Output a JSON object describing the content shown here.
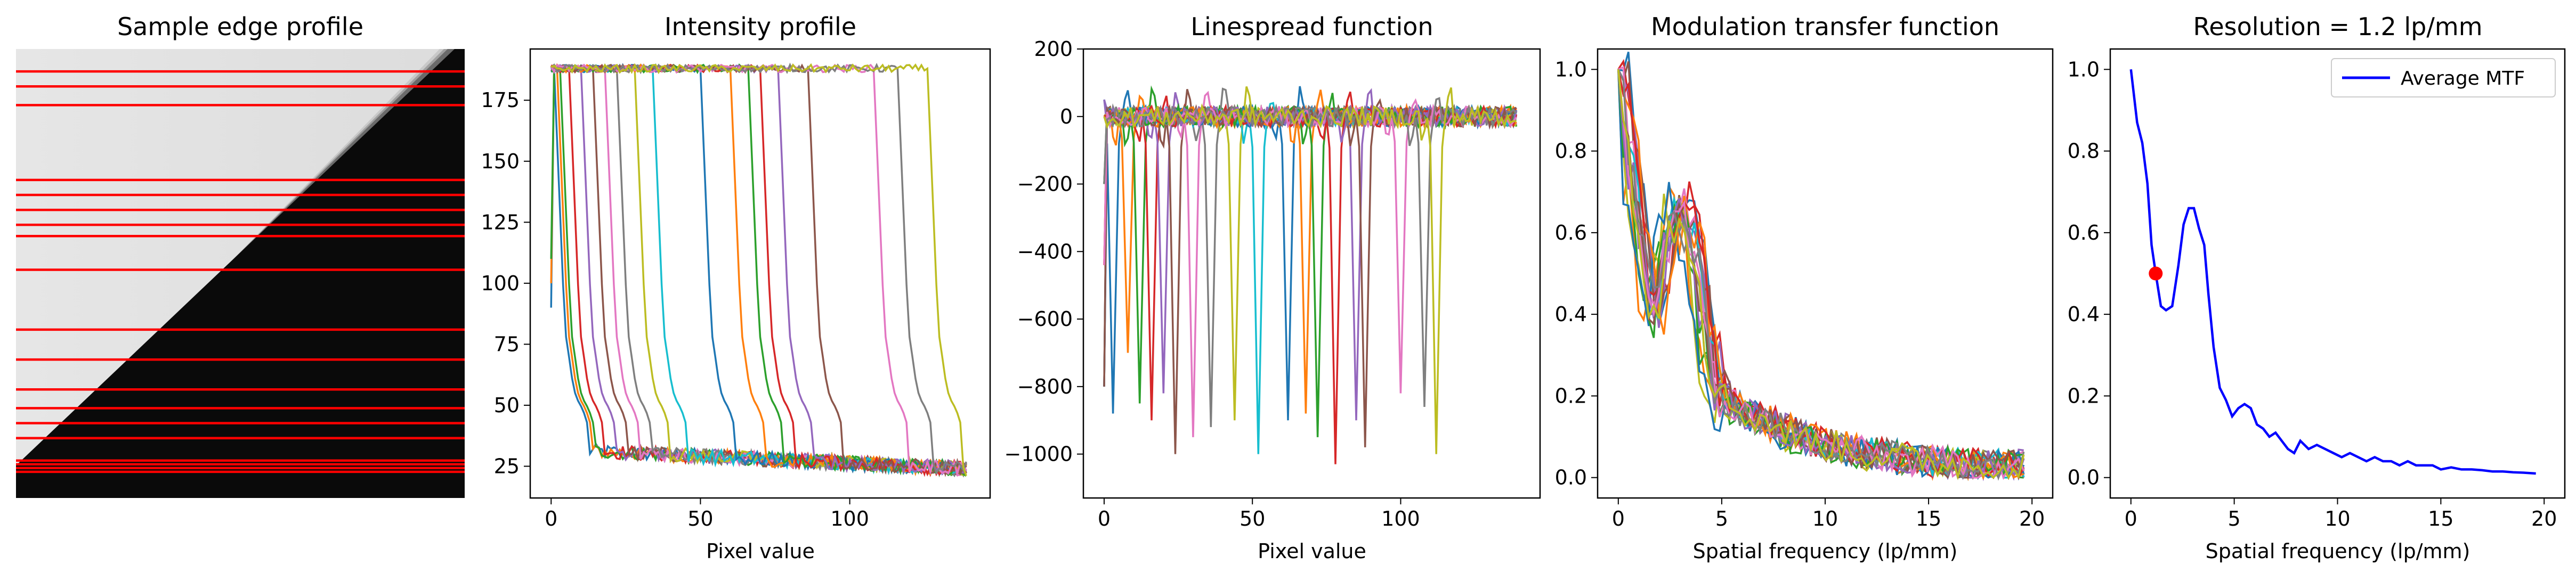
{
  "chart_data": [
    {
      "type": "image",
      "title": "Sample edge profile",
      "image_description": "Grayscale edge image: light region upper-left, dark region lower-right, diagonal blurred edge",
      "sample_rows": [
        6,
        10,
        15,
        35,
        39,
        43,
        47,
        50,
        59,
        75,
        83,
        91,
        96,
        100,
        104,
        110,
        111,
        112,
        113
      ],
      "image_rows": 120,
      "line_color": "#ff0000"
    },
    {
      "type": "line",
      "title": "Intensity profile",
      "xlabel": "Pixel value",
      "ylabel": "",
      "xlim": [
        -7,
        147
      ],
      "ylim": [
        12,
        196
      ],
      "xticks": [
        0,
        50,
        100
      ],
      "yticks": [
        25,
        50,
        75,
        100,
        125,
        150,
        175
      ],
      "num_series": 19,
      "high_value": 188,
      "low_value": 22,
      "edge_positions": [
        3,
        4,
        5,
        8,
        12,
        16,
        20,
        24,
        30,
        36,
        52,
        62,
        68,
        72,
        78,
        88,
        110,
        118,
        128,
        132
      ],
      "num_points": 140
    },
    {
      "type": "line",
      "title": "Linespread function",
      "xlabel": "Pixel value",
      "ylabel": "",
      "xlim": [
        -7,
        147
      ],
      "ylim": [
        -1130,
        200
      ],
      "xticks": [
        0,
        50,
        100
      ],
      "yticks": [
        200,
        0,
        -200,
        -400,
        -600,
        -800,
        -1000
      ],
      "num_series": 19,
      "dip_positions": [
        3,
        8,
        12,
        16,
        20,
        24,
        30,
        36,
        44,
        52,
        62,
        68,
        72,
        78,
        85,
        88,
        100,
        108,
        112,
        118,
        124,
        130
      ],
      "dip_depths": [
        -880,
        -700,
        -850,
        -900,
        -820,
        -1000,
        -950,
        -920,
        -900,
        -1000,
        -900,
        -880,
        -950,
        -1030,
        -900,
        -980,
        -820,
        -860,
        -1000,
        -1060,
        -880,
        -900
      ]
    },
    {
      "type": "line",
      "title": "Modulation transfer function",
      "xlabel": "Spatial frequency (lp/mm)",
      "ylabel": "",
      "xlim": [
        -1,
        21
      ],
      "ylim": [
        -0.05,
        1.05
      ],
      "xticks": [
        0,
        5,
        10,
        15,
        20
      ],
      "yticks": [
        0.0,
        0.2,
        0.4,
        0.6,
        0.8,
        1.0
      ],
      "num_series": 19,
      "x_max": 19.6,
      "base_curve": [
        [
          0,
          1.0
        ],
        [
          0.5,
          0.78
        ],
        [
          1.0,
          0.64
        ],
        [
          1.3,
          0.48
        ],
        [
          1.8,
          0.42
        ],
        [
          2.3,
          0.58
        ],
        [
          2.8,
          0.66
        ],
        [
          3.3,
          0.62
        ],
        [
          3.8,
          0.52
        ],
        [
          4.3,
          0.3
        ],
        [
          5.0,
          0.2
        ],
        [
          5.8,
          0.16
        ],
        [
          6.5,
          0.15
        ],
        [
          7.5,
          0.13
        ],
        [
          8.5,
          0.1
        ],
        [
          10,
          0.08
        ],
        [
          12,
          0.06
        ],
        [
          14,
          0.045
        ],
        [
          16,
          0.035
        ],
        [
          18,
          0.03
        ],
        [
          19.6,
          0.028
        ]
      ]
    },
    {
      "type": "line",
      "title": "Resolution = 1.2 lp/mm",
      "xlabel": "Spatial frequency (lp/mm)",
      "ylabel": "",
      "xlim": [
        -1,
        21
      ],
      "ylim": [
        -0.05,
        1.05
      ],
      "xticks": [
        0,
        5,
        10,
        15,
        20
      ],
      "yticks": [
        0.0,
        0.2,
        0.4,
        0.6,
        0.8,
        1.0
      ],
      "legend_position": "top-right",
      "series": [
        {
          "name": "Average MTF",
          "color": "#0000ff",
          "x": [
            0,
            0.3,
            0.55,
            0.8,
            1.0,
            1.2,
            1.45,
            1.7,
            2.0,
            2.3,
            2.55,
            2.8,
            3.05,
            3.3,
            3.55,
            3.75,
            4.0,
            4.3,
            4.6,
            4.9,
            5.2,
            5.5,
            5.8,
            6.1,
            6.4,
            6.7,
            7.0,
            7.3,
            7.6,
            7.9,
            8.2,
            8.6,
            9.0,
            9.4,
            9.8,
            10.2,
            10.6,
            11.0,
            11.4,
            11.8,
            12.2,
            12.6,
            13.0,
            13.4,
            13.8,
            14.2,
            14.6,
            15.0,
            15.5,
            16.0,
            16.5,
            17.0,
            17.5,
            18.0,
            18.5,
            19.0,
            19.6
          ],
          "y": [
            1.0,
            0.87,
            0.82,
            0.72,
            0.57,
            0.5,
            0.42,
            0.41,
            0.42,
            0.52,
            0.62,
            0.66,
            0.66,
            0.61,
            0.57,
            0.45,
            0.32,
            0.22,
            0.19,
            0.15,
            0.17,
            0.18,
            0.17,
            0.13,
            0.12,
            0.1,
            0.11,
            0.09,
            0.07,
            0.06,
            0.09,
            0.07,
            0.08,
            0.07,
            0.06,
            0.05,
            0.06,
            0.05,
            0.04,
            0.05,
            0.04,
            0.04,
            0.03,
            0.04,
            0.03,
            0.03,
            0.03,
            0.02,
            0.025,
            0.02,
            0.02,
            0.018,
            0.015,
            0.015,
            0.013,
            0.012,
            0.01
          ]
        }
      ],
      "marker": {
        "x": 1.2,
        "y": 0.5,
        "color": "#ff0000"
      }
    }
  ],
  "palette": [
    "#1f77b4",
    "#ff7f0e",
    "#2ca02c",
    "#d62728",
    "#9467bd",
    "#8c564b",
    "#e377c2",
    "#7f7f7f",
    "#bcbd22",
    "#17becf"
  ]
}
